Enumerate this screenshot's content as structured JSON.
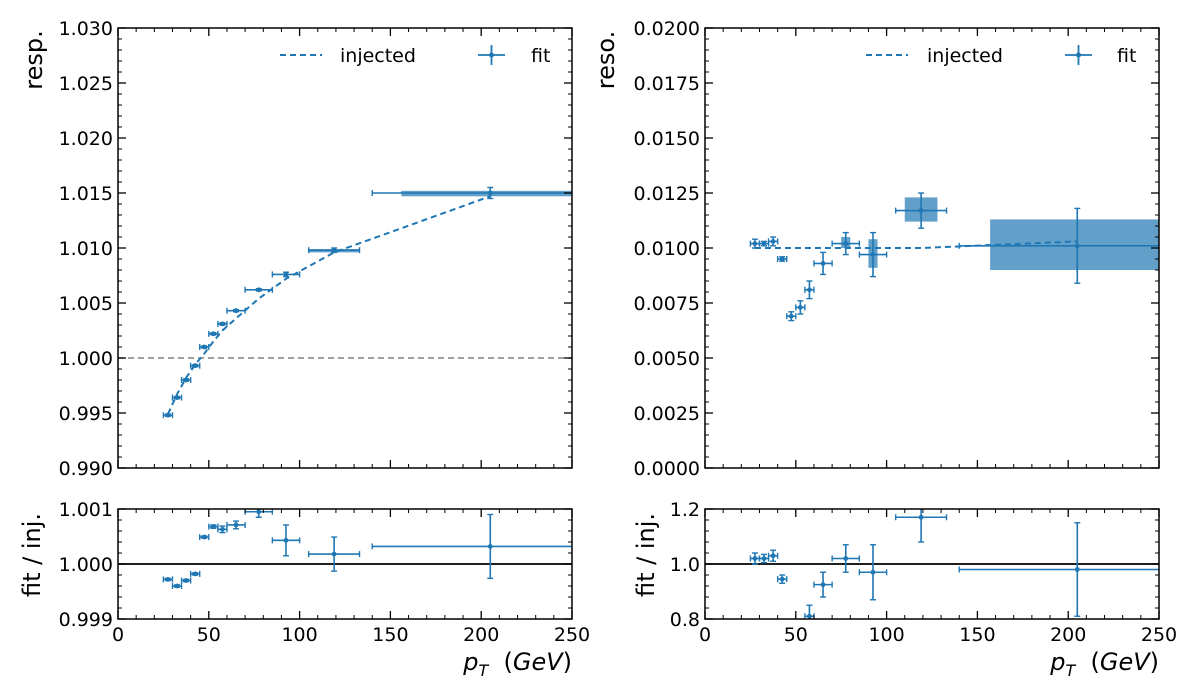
{
  "colors": {
    "series": "#1f77b4",
    "band": "#1f77b4",
    "reference": "#808080",
    "unity": "#000000"
  },
  "legend": {
    "injected_label": "injected",
    "fit_label": "fit",
    "placement": "top-right"
  },
  "xlabel": "p_T (GeV)",
  "chart_data": [
    {
      "type": "scatter",
      "panel": "response",
      "ylabel": "resp.",
      "xlim": [
        0,
        250
      ],
      "ylim": [
        0.99,
        1.03
      ],
      "xticks": [
        "0",
        "50",
        "100",
        "150",
        "200",
        "250"
      ],
      "yticks": [
        "0.990",
        "0.995",
        "1.000",
        "1.005",
        "1.010",
        "1.015",
        "1.020",
        "1.025",
        "1.030"
      ],
      "reference_line": 1.0,
      "injected": {
        "x": [
          27.5,
          32.5,
          37.5,
          42.5,
          47.5,
          52.5,
          57.5,
          65,
          77.5,
          92.5,
          119,
          205
        ],
        "y": [
          0.9949,
          0.9967,
          0.9982,
          0.9994,
          1.0004,
          1.0015,
          1.0025,
          1.0036,
          1.0054,
          1.0072,
          1.0096,
          1.0147
        ]
      },
      "fit": {
        "x": [
          27.5,
          32.5,
          37.5,
          42.5,
          47.5,
          52.5,
          57.5,
          65,
          77.5,
          92.5,
          119,
          205
        ],
        "xerr": [
          2.5,
          2.5,
          2.5,
          2.5,
          2.5,
          2.5,
          2.5,
          5,
          7.5,
          7.5,
          14,
          65
        ],
        "y": [
          0.9948,
          0.9964,
          0.998,
          0.9993,
          1.001,
          1.0022,
          1.0031,
          1.0043,
          1.0062,
          1.0076,
          1.0098,
          1.015
        ],
        "yerr": [
          0.0001,
          0.0001,
          0.0001,
          0.0001,
          0.0001,
          0.0001,
          0.0001,
          0.0001,
          0.0001,
          0.0002,
          0.0002,
          0.0005
        ]
      },
      "bands": [
        {
          "x0": 105,
          "x1": 133,
          "y0": 1.0096,
          "y1": 1.0099
        },
        {
          "x0": 156,
          "x1": 250,
          "y0": 1.0147,
          "y1": 1.0152
        }
      ]
    },
    {
      "type": "scatter",
      "panel": "resolution",
      "ylabel": "reso.",
      "xlim": [
        0,
        250
      ],
      "ylim": [
        0.0,
        0.02
      ],
      "xticks": [
        "0",
        "50",
        "100",
        "150",
        "200",
        "250"
      ],
      "yticks": [
        "0.0000",
        "0.0025",
        "0.0050",
        "0.0075",
        "0.0100",
        "0.0125",
        "0.0150",
        "0.0175",
        "0.0200"
      ],
      "injected": {
        "x": [
          27.5,
          32.5,
          37.5,
          42.5,
          47.5,
          52.5,
          57.5,
          65,
          77.5,
          92.5,
          119,
          205
        ],
        "y": [
          0.01,
          0.01,
          0.01,
          0.01,
          0.01,
          0.01,
          0.01,
          0.01,
          0.01,
          0.01,
          0.01,
          0.0103
        ]
      },
      "fit": {
        "x": [
          27.5,
          32.5,
          37.5,
          42.5,
          47.5,
          52.5,
          57.5,
          65,
          77.5,
          92.5,
          119,
          205
        ],
        "xerr": [
          2.5,
          2.5,
          2.5,
          2.5,
          2.5,
          2.5,
          2.5,
          5,
          7.5,
          7.5,
          14,
          65
        ],
        "y": [
          0.0102,
          0.0102,
          0.0103,
          0.0095,
          0.0069,
          0.0073,
          0.0081,
          0.0093,
          0.0102,
          0.0097,
          0.0117,
          0.0101
        ],
        "yerr": [
          0.0002,
          0.0001,
          0.0002,
          0.0001,
          0.0002,
          0.0003,
          0.0004,
          0.0005,
          0.0005,
          0.001,
          0.0008,
          0.0017
        ]
      },
      "bands": [
        {
          "x0": 75,
          "x1": 80,
          "y0": 0.01,
          "y1": 0.0105
        },
        {
          "x0": 90,
          "x1": 95,
          "y0": 0.0091,
          "y1": 0.0104
        },
        {
          "x0": 110,
          "x1": 128,
          "y0": 0.0112,
          "y1": 0.0123
        },
        {
          "x0": 157,
          "x1": 250,
          "y0": 0.009,
          "y1": 0.0113
        }
      ]
    },
    {
      "type": "scatter",
      "panel": "response-ratio",
      "ylabel": "fit / inj.",
      "xlim": [
        0,
        250
      ],
      "ylim": [
        0.999,
        1.001
      ],
      "xticks": [
        "0",
        "50",
        "100",
        "150",
        "200",
        "250"
      ],
      "yticks": [
        "0.999",
        "1.000",
        "1.001"
      ],
      "unity_line": 1.0,
      "fit": {
        "x": [
          27.5,
          32.5,
          37.5,
          42.5,
          47.5,
          52.5,
          57.5,
          65,
          77.5,
          92.5,
          119,
          205
        ],
        "xerr": [
          2.5,
          2.5,
          2.5,
          2.5,
          2.5,
          2.5,
          2.5,
          5,
          7.5,
          7.5,
          14,
          65
        ],
        "y": [
          0.99972,
          0.9996,
          0.9997,
          0.99982,
          1.00049,
          1.00068,
          1.00063,
          1.00071,
          1.00095,
          1.00043,
          1.00018,
          1.00032
        ],
        "yerr": [
          2e-05,
          2e-05,
          2e-05,
          2e-05,
          2e-05,
          3e-05,
          6e-05,
          7e-05,
          0.0001,
          0.00028,
          0.00031,
          0.00058
        ]
      }
    },
    {
      "type": "scatter",
      "panel": "resolution-ratio",
      "ylabel": "fit / inj.",
      "xlim": [
        0,
        250
      ],
      "ylim": [
        0.8,
        1.2
      ],
      "xticks": [
        "0",
        "50",
        "100",
        "150",
        "200",
        "250"
      ],
      "yticks": [
        "0.8",
        "1.0",
        "1.2"
      ],
      "unity_line": 1.0,
      "fit": {
        "x": [
          27.5,
          32.5,
          37.5,
          42.5,
          57.5,
          65,
          77.5,
          92.5,
          119,
          205
        ],
        "xerr": [
          2.5,
          2.5,
          2.5,
          2.5,
          2.5,
          5,
          7.5,
          7.5,
          14,
          65
        ],
        "y": [
          1.02,
          1.02,
          1.03,
          0.945,
          0.81,
          0.925,
          1.02,
          0.97,
          1.17,
          0.98
        ],
        "yerr": [
          0.02,
          0.015,
          0.02,
          0.015,
          0.04,
          0.045,
          0.05,
          0.1,
          0.09,
          0.17
        ]
      }
    }
  ]
}
